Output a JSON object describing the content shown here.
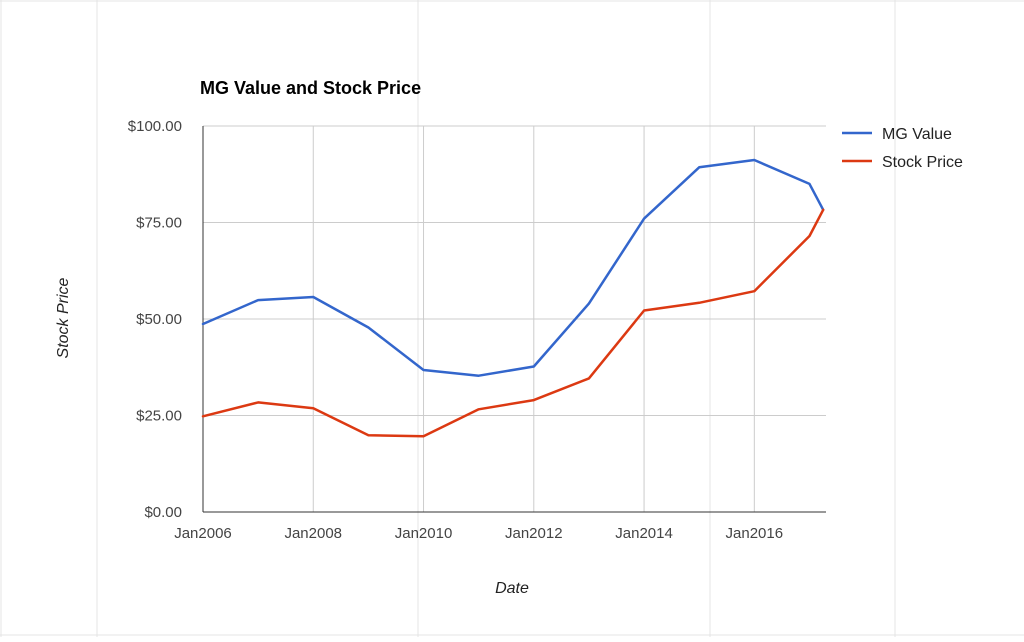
{
  "chart_data": {
    "type": "line",
    "title": "MG Value and Stock Price",
    "xlabel": "Date",
    "ylabel": "Stock Price",
    "x": [
      2006.0,
      2007.0,
      2008.0,
      2009.0,
      2010.0,
      2011.0,
      2012.0,
      2013.0,
      2014.0,
      2015.0,
      2016.0,
      2017.0,
      2017.25
    ],
    "series": [
      {
        "name": "MG Value",
        "color": "#3366cc",
        "values": [
          48.7,
          54.9,
          55.7,
          47.8,
          36.8,
          35.3,
          37.7,
          54.0,
          76.0,
          89.3,
          91.2,
          85.0,
          78.3
        ]
      },
      {
        "name": "Stock Price",
        "color": "#dc3912",
        "values": [
          24.8,
          28.4,
          26.9,
          19.9,
          19.6,
          26.6,
          29.0,
          34.6,
          52.2,
          54.2,
          57.2,
          71.5,
          78.3
        ]
      }
    ],
    "xlim": [
      2006.0,
      2017.3
    ],
    "ylim": [
      0,
      100
    ],
    "yticks": [
      0,
      25,
      50,
      75,
      100
    ],
    "ytick_labels": [
      "$0.00",
      "$25.00",
      "$50.00",
      "$75.00",
      "$100.00"
    ],
    "xticks": [
      2006,
      2008,
      2010,
      2012,
      2014,
      2016
    ],
    "xtick_labels": [
      "Jan2006",
      "Jan2008",
      "Jan2010",
      "Jan2012",
      "Jan2014",
      "Jan2016"
    ],
    "x_gridlines": [
      2006,
      2008,
      2010,
      2012,
      2014,
      2016
    ],
    "grid": true,
    "legend_position": "right"
  }
}
